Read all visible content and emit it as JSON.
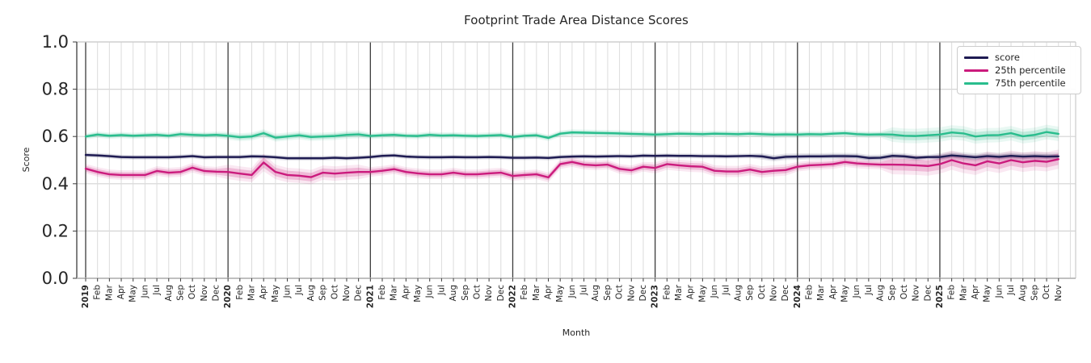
{
  "figure": {
    "title": "Footprint Trade Area Distance Scores",
    "xlabel": "Month",
    "ylabel": "Score"
  },
  "legend": {
    "items": [
      {
        "label": "score",
        "color": "#1e1b52"
      },
      {
        "label": "25th percentile",
        "color": "#cb1b7d"
      },
      {
        "label": "75th percentile",
        "color": "#29bd8d"
      }
    ]
  },
  "chart_data": {
    "type": "line",
    "title": "Footprint Trade Area Distance Scores",
    "xlabel": "Month",
    "ylabel": "Score",
    "ylim": [
      0.0,
      1.0
    ],
    "yticks": [
      0.0,
      0.2,
      0.4,
      0.6,
      0.8,
      1.0
    ],
    "ytick_labels": [
      "0.0",
      "0.2",
      "0.4",
      "0.6",
      "0.8",
      "1.0"
    ],
    "grid": true,
    "legend_position": "upper right",
    "x_range": "2019-01 to 2025-11",
    "x_tick_labels": [
      "2019",
      "Feb",
      "Mar",
      "Apr",
      "May",
      "Jun",
      "Jul",
      "Aug",
      "Sep",
      "Oct",
      "Nov",
      "Dec",
      "2020",
      "Feb",
      "Mar",
      "Apr",
      "May",
      "Jun",
      "Jul",
      "Aug",
      "Sep",
      "Oct",
      "Nov",
      "Dec",
      "2021",
      "Feb",
      "Mar",
      "Apr",
      "May",
      "Jun",
      "Jul",
      "Aug",
      "Sep",
      "Oct",
      "Nov",
      "Dec",
      "2022",
      "Feb",
      "Mar",
      "Apr",
      "May",
      "Jun",
      "Jul",
      "Aug",
      "Sep",
      "Oct",
      "Nov",
      "Dec",
      "2023",
      "Feb",
      "Mar",
      "Apr",
      "May",
      "Jun",
      "Jul",
      "Aug",
      "Sep",
      "Oct",
      "Nov",
      "Dec",
      "2024",
      "Feb",
      "Mar",
      "Apr",
      "May",
      "Jun",
      "Jul",
      "Aug",
      "Sep",
      "Oct",
      "Nov",
      "Dec",
      "2025",
      "Feb",
      "Mar",
      "Apr",
      "May",
      "Jun",
      "Jul",
      "Aug",
      "Sep",
      "Oct",
      "Nov"
    ],
    "series": [
      {
        "name": "score",
        "color": "#1e1b52",
        "values": [
          0.522,
          0.52,
          0.517,
          0.513,
          0.512,
          0.512,
          0.512,
          0.512,
          0.514,
          0.517,
          0.512,
          0.513,
          0.513,
          0.513,
          0.516,
          0.515,
          0.512,
          0.508,
          0.508,
          0.508,
          0.508,
          0.51,
          0.508,
          0.51,
          0.513,
          0.518,
          0.52,
          0.515,
          0.513,
          0.512,
          0.512,
          0.513,
          0.512,
          0.512,
          0.513,
          0.512,
          0.51,
          0.51,
          0.511,
          0.509,
          0.513,
          0.515,
          0.516,
          0.515,
          0.516,
          0.517,
          0.516,
          0.519,
          0.518,
          0.519,
          0.518,
          0.518,
          0.517,
          0.517,
          0.516,
          0.517,
          0.518,
          0.516,
          0.508,
          0.514,
          0.515,
          0.516,
          0.516,
          0.517,
          0.517,
          0.516,
          0.509,
          0.51,
          0.518,
          0.516,
          0.51,
          0.513,
          0.513,
          0.52,
          0.516,
          0.512,
          0.517,
          0.514,
          0.518,
          0.515,
          0.517,
          0.515,
          0.516
        ],
        "band": {
          "base": 0.006,
          "segments": [
            {
              "from": 57,
              "to": 70,
              "hw": 0.008
            },
            {
              "from": 72,
              "to": 82,
              "hw": 0.01
            }
          ]
        }
      },
      {
        "name": "25th percentile",
        "color": "#cb1b7d",
        "values": [
          0.464,
          0.45,
          0.44,
          0.437,
          0.437,
          0.437,
          0.454,
          0.447,
          0.45,
          0.468,
          0.454,
          0.451,
          0.45,
          0.443,
          0.437,
          0.49,
          0.45,
          0.437,
          0.434,
          0.428,
          0.447,
          0.443,
          0.447,
          0.45,
          0.45,
          0.455,
          0.462,
          0.45,
          0.444,
          0.44,
          0.44,
          0.447,
          0.44,
          0.44,
          0.444,
          0.447,
          0.433,
          0.437,
          0.44,
          0.427,
          0.483,
          0.492,
          0.481,
          0.478,
          0.481,
          0.463,
          0.457,
          0.472,
          0.467,
          0.483,
          0.478,
          0.474,
          0.472,
          0.455,
          0.452,
          0.452,
          0.46,
          0.45,
          0.455,
          0.458,
          0.472,
          0.478,
          0.48,
          0.483,
          0.492,
          0.486,
          0.483,
          0.481,
          0.481,
          0.48,
          0.478,
          0.475,
          0.483,
          0.5,
          0.486,
          0.478,
          0.495,
          0.486,
          0.5,
          0.491,
          0.497,
          0.493,
          0.504
        ],
        "band": {
          "base": 0.012,
          "segments": [
            {
              "from": 12,
              "to": 23,
              "hw": 0.018
            },
            {
              "from": 15,
              "to": 15,
              "hw": 0.022
            },
            {
              "from": 48,
              "to": 59,
              "hw": 0.014
            },
            {
              "from": 68,
              "to": 82,
              "hw": 0.024
            }
          ]
        }
      },
      {
        "name": "75th percentile",
        "color": "#29bd8d",
        "values": [
          0.6,
          0.608,
          0.603,
          0.606,
          0.603,
          0.605,
          0.607,
          0.603,
          0.61,
          0.607,
          0.605,
          0.607,
          0.603,
          0.597,
          0.6,
          0.614,
          0.595,
          0.6,
          0.605,
          0.598,
          0.6,
          0.602,
          0.607,
          0.609,
          0.602,
          0.605,
          0.607,
          0.603,
          0.602,
          0.607,
          0.604,
          0.605,
          0.603,
          0.602,
          0.604,
          0.606,
          0.598,
          0.603,
          0.605,
          0.594,
          0.612,
          0.617,
          0.616,
          0.615,
          0.614,
          0.613,
          0.611,
          0.61,
          0.608,
          0.61,
          0.612,
          0.611,
          0.61,
          0.612,
          0.611,
          0.61,
          0.612,
          0.61,
          0.608,
          0.609,
          0.608,
          0.61,
          0.609,
          0.612,
          0.614,
          0.61,
          0.608,
          0.609,
          0.608,
          0.603,
          0.602,
          0.605,
          0.608,
          0.617,
          0.613,
          0.6,
          0.605,
          0.606,
          0.614,
          0.601,
          0.607,
          0.619,
          0.611
        ],
        "band": {
          "base": 0.008,
          "segments": [
            {
              "from": 12,
              "to": 23,
              "hw": 0.01
            },
            {
              "from": 68,
              "to": 82,
              "hw": 0.018
            }
          ]
        }
      }
    ]
  }
}
